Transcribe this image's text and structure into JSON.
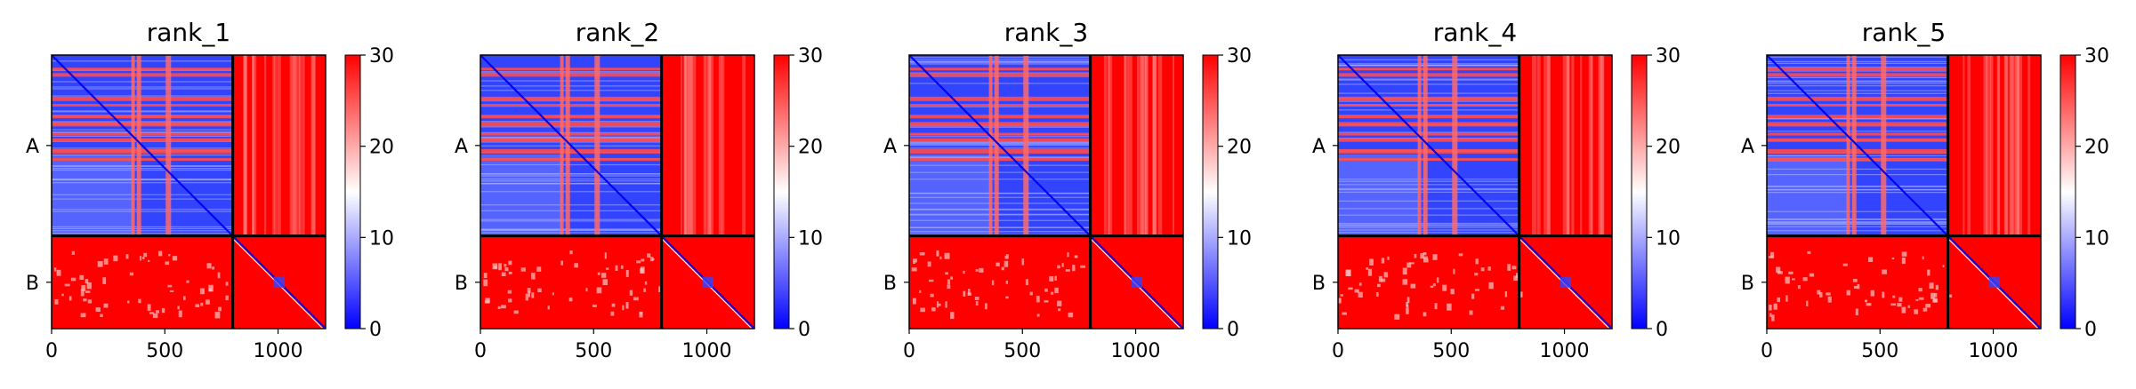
{
  "chart_data": {
    "type": "heatmap",
    "description_colormap": "bwr",
    "colors": {
      "low": "#0000ff",
      "mid": "#ffffff",
      "high": "#ff0000",
      "frame": "#000000"
    },
    "shared": {
      "xlim": [
        0,
        1210
      ],
      "xticks": [
        0,
        500,
        1000
      ],
      "xtick_labels": [
        "0",
        "500",
        "1000"
      ],
      "chain_boundaries": [
        0,
        800,
        1210
      ],
      "chain_labels": [
        "A",
        "B"
      ],
      "chain_label_positions": [
        400,
        1005
      ],
      "colorbar": {
        "vmin": 0,
        "vmax": 30,
        "ticks": [
          0,
          10,
          20,
          30
        ],
        "tick_labels": [
          "0",
          "10",
          "20",
          "30"
        ]
      }
    },
    "panels": [
      {
        "title": "rank_1"
      },
      {
        "title": "rank_2"
      },
      {
        "title": "rank_3"
      },
      {
        "title": "rank_4"
      },
      {
        "title": "rank_5"
      }
    ]
  }
}
